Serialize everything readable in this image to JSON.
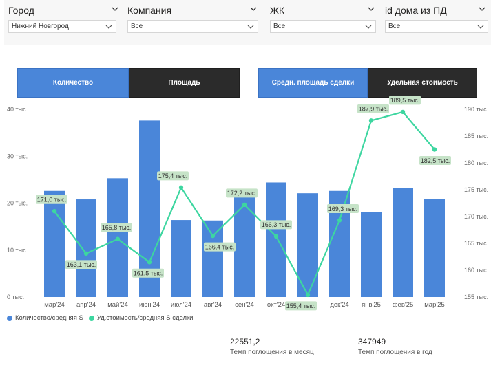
{
  "filters": [
    {
      "label": "Город",
      "value": "Нижний Новгород"
    },
    {
      "label": "Компания",
      "value": "Все"
    },
    {
      "label": "ЖК",
      "value": "Все"
    },
    {
      "label": "id дома из ПД",
      "value": "Все"
    }
  ],
  "buttons": [
    {
      "label": "Количество",
      "active": true
    },
    {
      "label": "Площадь",
      "active": false
    },
    {
      "label": "Средн. площадь сделки",
      "active": true
    },
    {
      "label": "Удельная стоимость",
      "active": false
    }
  ],
  "chart_data": {
    "type": "bar",
    "categories": [
      "мар'24",
      "апр'24",
      "май'24",
      "июн'24",
      "июл'24",
      "авг'24",
      "сен'24",
      "окт'24",
      "ноя'24",
      "дек'24",
      "янв'25",
      "фев'25",
      "мар'25"
    ],
    "series": [
      {
        "name": "Количество/средняя S",
        "type": "bar",
        "axis": "left",
        "color": "#4a86d9",
        "values": [
          22.6,
          20.8,
          25.3,
          37.6,
          16.4,
          16.3,
          21.6,
          24.4,
          22.1,
          22.6,
          18.1,
          23.2,
          20.9
        ]
      },
      {
        "name": "Уд.стоимость/средняя S сделки",
        "type": "line",
        "axis": "right",
        "color": "#3dd6a0",
        "values": [
          171.0,
          163.1,
          165.8,
          161.5,
          175.4,
          166.4,
          172.2,
          166.3,
          155.4,
          169.3,
          187.9,
          189.5,
          182.5
        ],
        "data_labels": [
          "171,0 тыс.",
          "163,1 тыс.",
          "165,8 тыс.",
          "161,5 тыс.",
          "175,4 тыс.",
          "166,4 тыс.",
          "172,2 тыс.",
          "166,3 тыс.",
          "155,4 тыс.",
          "169,3 тыс.",
          "187,9 тыс.",
          "189,5 тыс.",
          "182,5 тыс."
        ]
      }
    ],
    "y_left": {
      "min": 0,
      "max": 40,
      "ticks": [
        0,
        10,
        20,
        30,
        40
      ],
      "tick_labels": [
        "0 тыс.",
        "10 тыс.",
        "20 тыс.",
        "30 тыс.",
        "40 тыс."
      ]
    },
    "y_right": {
      "min": 155,
      "max": 190,
      "ticks": [
        155,
        160,
        165,
        170,
        175,
        180,
        185,
        190
      ],
      "tick_labels": [
        "155 тыс.",
        "160 тыс.",
        "165 тыс.",
        "170 тыс.",
        "175 тыс.",
        "180 тыс.",
        "185 тыс.",
        "190 тыс."
      ]
    },
    "legend_position": "bottom-left",
    "grid": false
  },
  "kpis": [
    {
      "value": "22551,2",
      "label": "Темп поглощения в месяц"
    },
    {
      "value": "347949",
      "label": "Темп поглощения в год"
    }
  ]
}
